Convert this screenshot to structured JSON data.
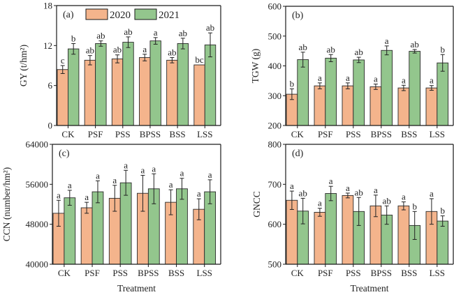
{
  "colors": {
    "y2020": "#F4B48C",
    "y2021": "#93C68D",
    "frame": "#1a1a1a",
    "error": "#222222"
  },
  "legend": {
    "position": "top-inside-panel-a",
    "entries": [
      "2020",
      "2021"
    ]
  },
  "chart_data": [
    {
      "type": "bar",
      "panel_label": "(a)",
      "title": "",
      "xlabel": "",
      "ylabel": "GY (t/hm²)",
      "ylim": [
        0,
        18
      ],
      "yticks": [
        0,
        6,
        12,
        18
      ],
      "grid": false,
      "categories": [
        "CK",
        "PSF",
        "PSS",
        "BPSS",
        "BSS",
        "LSS"
      ],
      "series": [
        {
          "name": "2020",
          "values": [
            8.4,
            9.8,
            10.0,
            10.2,
            9.8,
            9.1
          ],
          "errors": [
            0.6,
            0.7,
            0.6,
            0.5,
            0.4,
            0.0
          ],
          "letters": [
            "c",
            "ab",
            "ab",
            "a",
            "ab",
            "bc"
          ]
        },
        {
          "name": "2021",
          "values": [
            11.5,
            12.3,
            12.5,
            12.7,
            12.3,
            12.1
          ],
          "errors": [
            0.8,
            0.4,
            0.8,
            0.5,
            0.8,
            1.8
          ],
          "letters": [
            "b",
            "ab",
            "ab",
            "a",
            "ab",
            "ab"
          ]
        }
      ]
    },
    {
      "type": "bar",
      "panel_label": "(b)",
      "title": "",
      "xlabel": "",
      "ylabel": "TGW (g)",
      "ylim": [
        200,
        600
      ],
      "yticks": [
        200,
        300,
        400,
        500,
        600
      ],
      "grid": false,
      "categories": [
        "CK",
        "PSF",
        "PSS",
        "BPSS",
        "BSS",
        "LSS"
      ],
      "series": [
        {
          "name": "2020",
          "values": [
            305,
            333,
            333,
            330,
            326,
            326
          ],
          "errors": [
            18,
            10,
            10,
            9,
            9,
            8
          ],
          "letters": [
            "b",
            "a",
            "a",
            "a",
            "a",
            "a"
          ]
        },
        {
          "name": "2021",
          "values": [
            421,
            426,
            420,
            452,
            449,
            410
          ],
          "errors": [
            25,
            12,
            9,
            15,
            6,
            28
          ],
          "letters": [
            "ab",
            "ab",
            "ab",
            "a",
            "ab",
            "b"
          ]
        }
      ]
    },
    {
      "type": "bar",
      "panel_label": "(c)",
      "title": "",
      "xlabel": "Treatment",
      "ylabel": "CCN (number/hm²)",
      "ylim": [
        40000,
        64000
      ],
      "yticks": [
        40000,
        48000,
        56000,
        64000
      ],
      "grid": false,
      "categories": [
        "CK",
        "PSF",
        "PSS",
        "BPSS",
        "BSS",
        "LSS"
      ],
      "series": [
        {
          "name": "2020",
          "values": [
            50200,
            51300,
            53200,
            54200,
            52400,
            51000
          ],
          "errors": [
            2600,
            1100,
            2600,
            3600,
            2500,
            2100
          ],
          "letters": [
            "a",
            "a",
            "a",
            "a",
            "a",
            "a"
          ]
        },
        {
          "name": "2021",
          "values": [
            53300,
            54500,
            56300,
            55100,
            55100,
            54500
          ],
          "errors": [
            1500,
            2200,
            2500,
            3000,
            2100,
            2400
          ],
          "letters": [
            "a",
            "a",
            "a",
            "a",
            "a",
            "a"
          ]
        }
      ]
    },
    {
      "type": "bar",
      "panel_label": "(d)",
      "title": "",
      "xlabel": "Treatment",
      "ylabel": "GNCC",
      "ylim": [
        500,
        800
      ],
      "yticks": [
        500,
        600,
        700,
        800
      ],
      "grid": false,
      "categories": [
        "CK",
        "PSF",
        "PSS",
        "BPSS",
        "BSS",
        "LSS"
      ],
      "series": [
        {
          "name": "2020",
          "values": [
            660,
            630,
            672,
            646,
            646,
            632
          ],
          "errors": [
            23,
            10,
            6,
            27,
            10,
            32
          ],
          "letters": [
            "a",
            "a",
            "a",
            "a",
            "a",
            "a"
          ]
        },
        {
          "name": "2021",
          "values": [
            633,
            677,
            632,
            623,
            597,
            608
          ],
          "errors": [
            32,
            18,
            35,
            23,
            35,
            13
          ],
          "letters": [
            "ab",
            "a",
            "ab",
            "ab",
            "b",
            "b"
          ]
        }
      ]
    }
  ]
}
